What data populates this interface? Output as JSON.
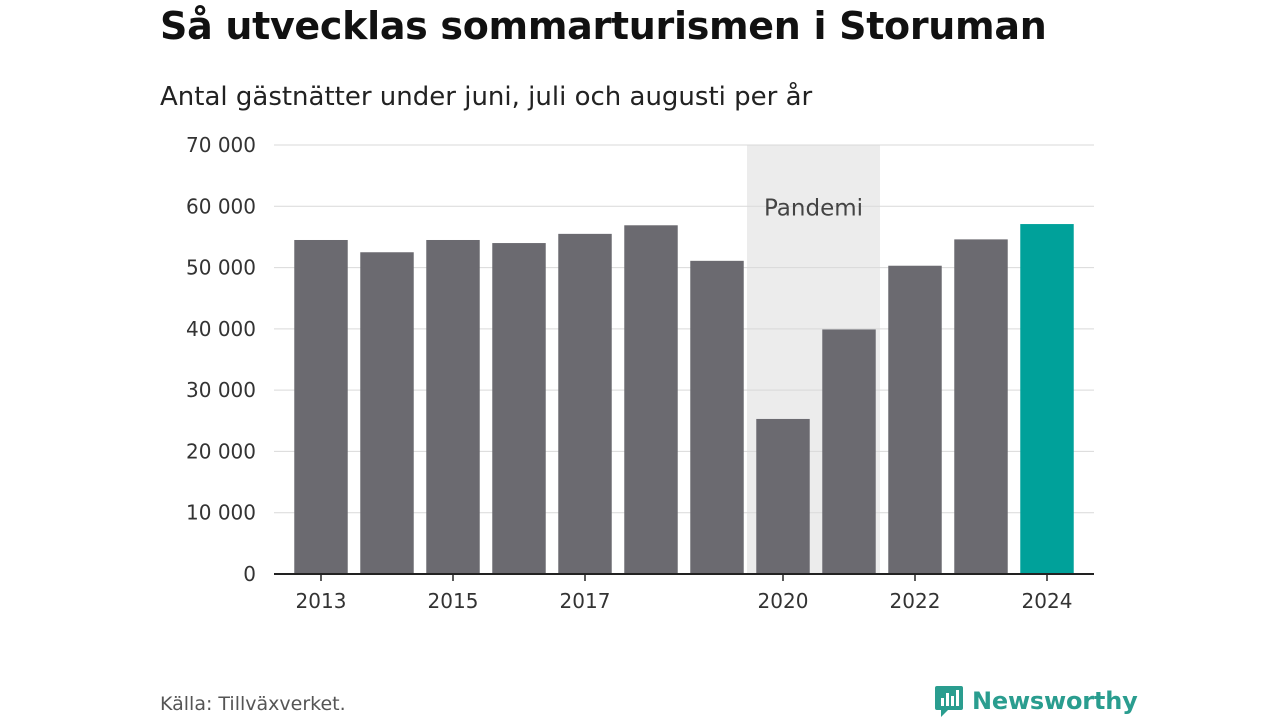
{
  "header": {
    "title": "Så utvecklas sommarturismen i Storuman",
    "subtitle": "Antal gästnätter under juni, juli och augusti per år"
  },
  "footer": {
    "source": "Källa: Tillväxverket.",
    "brand": "Newsworthy"
  },
  "colors": {
    "bar": "#6b6a70",
    "highlight": "#00a19a",
    "shade": "#ececec",
    "grid": "#d9d9d9",
    "axis": "#222222",
    "brand": "#2a9d8f"
  },
  "chart_data": {
    "type": "bar",
    "categories": [
      "2013",
      "2014",
      "2015",
      "2016",
      "2017",
      "2018",
      "2019",
      "2020",
      "2021",
      "2022",
      "2023",
      "2024"
    ],
    "values": [
      54500,
      52500,
      54500,
      54000,
      55500,
      56900,
      51100,
      25300,
      39900,
      50300,
      54600,
      57100
    ],
    "x_tick_labels": [
      "2013",
      "",
      "2015",
      "",
      "2017",
      "",
      "",
      "2020",
      "",
      "2022",
      "",
      "2024"
    ],
    "y_ticks": [
      0,
      10000,
      20000,
      30000,
      40000,
      50000,
      60000,
      70000
    ],
    "y_tick_labels": [
      "0",
      "10 000",
      "20 000",
      "30 000",
      "40 000",
      "50 000",
      "60 000",
      "70 000"
    ],
    "ylim": [
      0,
      70000
    ],
    "highlight_category": "2024",
    "shaded_band": {
      "from": "2020",
      "to": "2021",
      "label": "Pandemi"
    },
    "grid": true,
    "legend": "none"
  }
}
